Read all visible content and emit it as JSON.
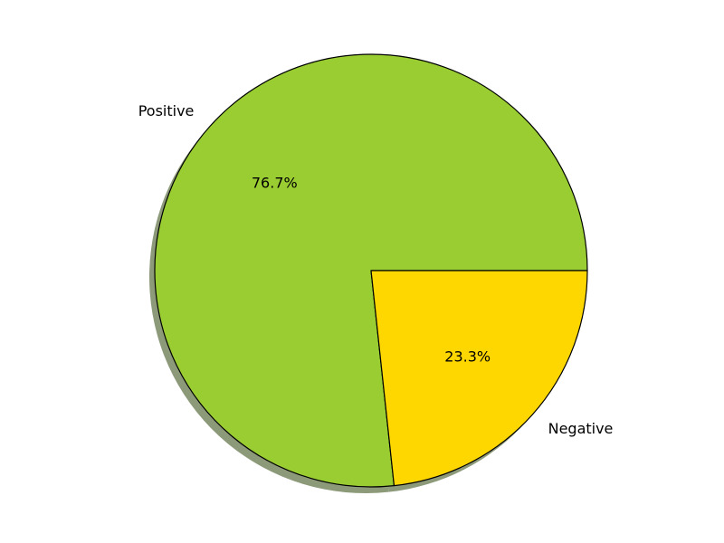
{
  "chart_data": {
    "type": "pie",
    "categories": [
      "Positive",
      "Negative"
    ],
    "values": [
      76.7,
      23.3
    ],
    "percent_labels": [
      "76.7%",
      "23.3%"
    ],
    "colors": [
      "#9acd32",
      "#ffd700"
    ],
    "edge_color": "#000000",
    "shadow": true,
    "shadow_color": "#8c9a7a",
    "start_angle_deg": 0,
    "direction": "counterclockwise",
    "legend": "none"
  }
}
